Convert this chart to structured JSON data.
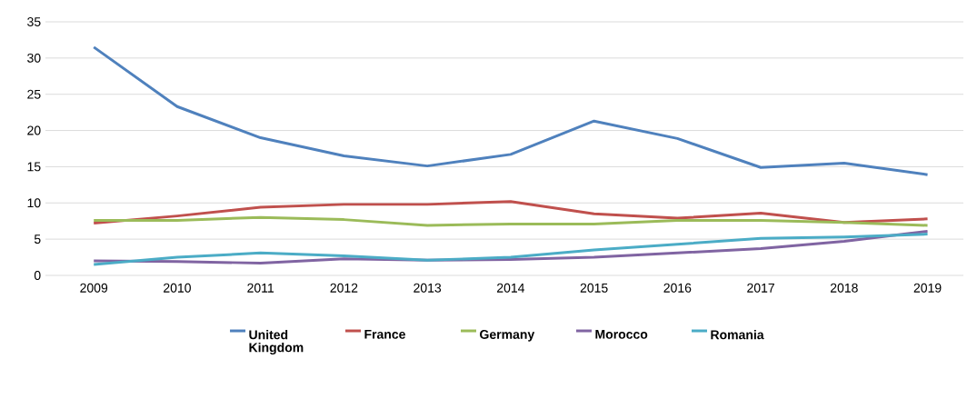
{
  "chart_data": {
    "type": "line",
    "categories": [
      "2009",
      "2010",
      "2011",
      "2012",
      "2013",
      "2014",
      "2015",
      "2016",
      "2017",
      "2018",
      "2019"
    ],
    "series": [
      {
        "name": "United Kingdom",
        "color": "#4f81bd",
        "values": [
          31.5,
          23.3,
          19,
          16.5,
          15.1,
          16.7,
          21.3,
          18.9,
          14.9,
          15.5,
          13.9
        ]
      },
      {
        "name": "France",
        "color": "#c0504d",
        "values": [
          7.2,
          8.2,
          9.4,
          9.8,
          9.8,
          10.2,
          8.5,
          7.9,
          8.6,
          7.3,
          7.8
        ]
      },
      {
        "name": "Germany",
        "color": "#9bbb59",
        "values": [
          7.6,
          7.6,
          8.0,
          7.7,
          6.9,
          7.1,
          7.1,
          7.6,
          7.6,
          7.3,
          6.9
        ]
      },
      {
        "name": "Morocco",
        "color": "#8064a2",
        "values": [
          2.0,
          1.9,
          1.7,
          2.3,
          2.1,
          2.2,
          2.5,
          3.1,
          3.7,
          4.7,
          6.1
        ]
      },
      {
        "name": "Romania",
        "color": "#4bacc6",
        "values": [
          1.5,
          2.5,
          3.1,
          2.7,
          2.1,
          2.5,
          3.5,
          4.3,
          5.1,
          5.3,
          5.7
        ]
      }
    ],
    "ylim": [
      0,
      35
    ],
    "yticks": [
      0,
      5,
      10,
      15,
      20,
      25,
      30,
      35
    ],
    "grid": "y",
    "legend": "bottom",
    "marker": "none",
    "line_style": "solid"
  }
}
